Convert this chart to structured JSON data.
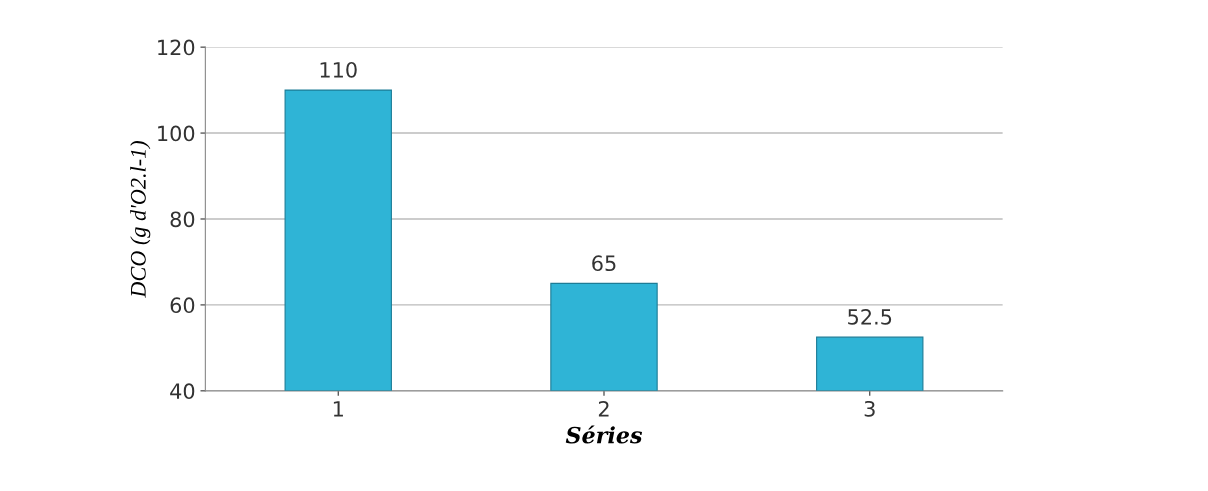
{
  "chart_data": {
    "type": "bar",
    "categories": [
      "1",
      "2",
      "3"
    ],
    "values": [
      110,
      65,
      52.5
    ],
    "color": "#2fb4d6",
    "ylim": [
      40,
      120
    ],
    "yticks": [
      40,
      60,
      80,
      100,
      120
    ],
    "grid": "y",
    "data_labels": true,
    "xlabel": "Séries",
    "ylabel": "DCO (g d'O2.l-1)"
  }
}
